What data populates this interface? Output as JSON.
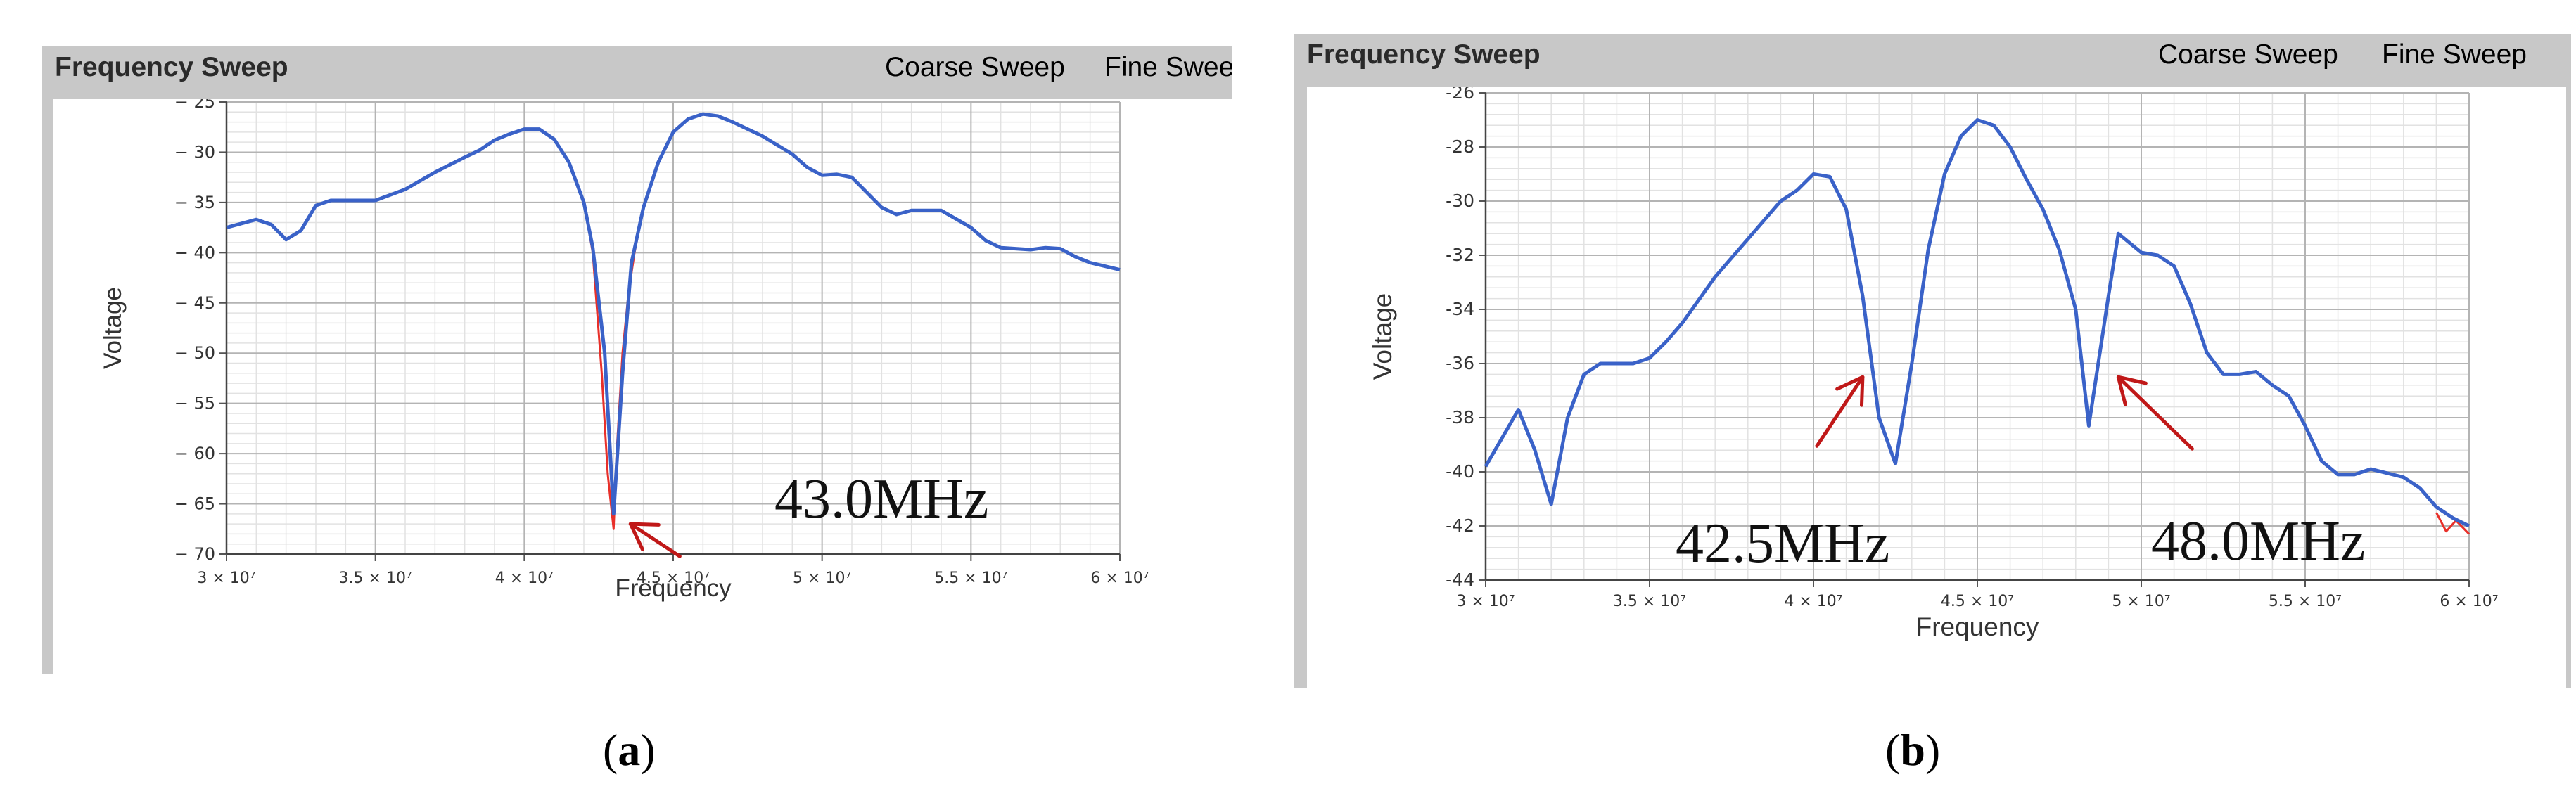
{
  "panels": [
    {
      "caption_open": "(",
      "caption_letter": "a",
      "caption_close": ")",
      "title": "Frequency Sweep",
      "legend": {
        "coarse": "Coarse Sweep",
        "fine": "Fine Swee"
      }
    },
    {
      "caption_open": "(",
      "caption_letter": "b",
      "caption_close": ")",
      "title": "Frequency Sweep",
      "legend": {
        "coarse": "Coarse Sweep",
        "fine": "Fine Sweep"
      }
    }
  ],
  "colors": {
    "coarse": "#e8302a",
    "fine": "#3a62c8",
    "arrow": "#c01818",
    "panel_bg": "#c8c8c8"
  },
  "chart_data": [
    {
      "type": "line",
      "title": "Frequency Sweep",
      "xlabel": "Frequency",
      "ylabel": "Voltage",
      "xlim": [
        30000000,
        60000000
      ],
      "ylim": [
        -70,
        -25
      ],
      "xticks": [
        30000000,
        35000000,
        40000000,
        45000000,
        50000000,
        55000000,
        60000000
      ],
      "xtick_labels": [
        "3 × 10⁷",
        "3.5 × 10⁷",
        "4 × 10⁷",
        "4.5 × 10⁷",
        "5 × 10⁷",
        "5.5 × 10⁷",
        "6 × 10⁷"
      ],
      "yticks": [
        -70,
        -65,
        -60,
        -55,
        -50,
        -45,
        -40,
        -35,
        -30,
        -25
      ],
      "ytick_labels": [
        "− 70",
        "− 65",
        "− 60",
        "− 55",
        "− 50",
        "− 45",
        "− 40",
        "− 35",
        "− 30",
        "− 25"
      ],
      "grid": true,
      "legend_position": "top-right",
      "series": [
        {
          "name": "Fine Swee",
          "color_key": "fine",
          "x": [
            30000000,
            31000000,
            31500000,
            32000000,
            32500000,
            33000000,
            33500000,
            34000000,
            35000000,
            36000000,
            37000000,
            38000000,
            38500000,
            39000000,
            39500000,
            40000000,
            40500000,
            41000000,
            41500000,
            42000000,
            42300000,
            42700000,
            43000000,
            43300000,
            43600000,
            44000000,
            44500000,
            45000000,
            45500000,
            46000000,
            46500000,
            47000000,
            48000000,
            49000000,
            49500000,
            50000000,
            50500000,
            51000000,
            52000000,
            52500000,
            53000000,
            54000000,
            55000000,
            55500000,
            56000000,
            56500000,
            57000000,
            57500000,
            58000000,
            58500000,
            59000000,
            60000000
          ],
          "y": [
            -37.5,
            -36.7,
            -37.2,
            -38.7,
            -37.8,
            -35.3,
            -34.8,
            -34.8,
            -34.8,
            -33.7,
            -32.0,
            -30.5,
            -29.8,
            -28.8,
            -28.2,
            -27.7,
            -27.7,
            -28.7,
            -31.0,
            -35.0,
            -39.5,
            -50.0,
            -66.0,
            -52.0,
            -41.0,
            -35.5,
            -31.0,
            -28.0,
            -26.7,
            -26.2,
            -26.4,
            -27.0,
            -28.4,
            -30.2,
            -31.5,
            -32.3,
            -32.2,
            -32.5,
            -35.5,
            -36.2,
            -35.8,
            -35.8,
            -37.5,
            -38.8,
            -39.5,
            -39.6,
            -39.7,
            -39.5,
            -39.6,
            -40.4,
            -41.0,
            -41.7
          ]
        },
        {
          "name": "Coarse Sweep",
          "color_key": "coarse",
          "x": [
            41500000,
            42000000,
            42300000,
            42600000,
            42800000,
            43000000,
            43100000,
            43300000,
            43500000,
            43700000,
            44000000
          ],
          "y": [
            -31.0,
            -35.0,
            -40.0,
            -52.0,
            -62.0,
            -67.5,
            -60.0,
            -50.0,
            -44.0,
            -40.0,
            -35.5
          ]
        }
      ],
      "annotations": [
        {
          "text": "43.0MHz",
          "x": 43000000
        }
      ]
    },
    {
      "type": "line",
      "title": "Frequency Sweep",
      "xlabel": "Frequency",
      "ylabel": "Voltage",
      "xlim": [
        30000000,
        60000000
      ],
      "ylim": [
        -44,
        -26
      ],
      "xticks": [
        30000000,
        35000000,
        40000000,
        45000000,
        50000000,
        55000000,
        60000000
      ],
      "xtick_labels": [
        "3 × 10⁷",
        "3.5 × 10⁷",
        "4 × 10⁷",
        "4.5 × 10⁷",
        "5 × 10⁷",
        "5.5 × 10⁷",
        "6 × 10⁷"
      ],
      "yticks": [
        -44,
        -42,
        -40,
        -38,
        -36,
        -34,
        -32,
        -30,
        -28,
        -26
      ],
      "ytick_labels": [
        "-44",
        "-42",
        "-40",
        "-38",
        "-36",
        "-34",
        "-32",
        "-30",
        "-28",
        "-26"
      ],
      "grid": true,
      "legend_position": "top-right",
      "series": [
        {
          "name": "Fine Sweep",
          "color_key": "fine",
          "x": [
            30000000,
            31000000,
            31500000,
            32000000,
            32500000,
            33000000,
            33500000,
            34000000,
            34500000,
            35000000,
            35500000,
            36000000,
            37000000,
            38000000,
            39000000,
            39500000,
            40000000,
            40500000,
            41000000,
            41500000,
            42000000,
            42500000,
            43000000,
            43500000,
            44000000,
            44500000,
            45000000,
            45500000,
            46000000,
            46500000,
            47000000,
            47500000,
            48000000,
            48400000,
            49000000,
            49300000,
            49700000,
            50000000,
            50500000,
            51000000,
            51500000,
            52000000,
            52500000,
            53000000,
            53500000,
            54000000,
            54500000,
            55000000,
            55500000,
            56000000,
            56500000,
            57000000,
            58000000,
            58500000,
            59000000,
            59500000,
            60000000
          ],
          "y": [
            -39.8,
            -37.7,
            -39.2,
            -41.2,
            -38.0,
            -36.4,
            -36.0,
            -36.0,
            -36.0,
            -35.8,
            -35.2,
            -34.5,
            -32.8,
            -31.4,
            -30.0,
            -29.6,
            -29.0,
            -29.1,
            -30.3,
            -33.5,
            -38.0,
            -39.7,
            -36.0,
            -31.8,
            -29.0,
            -27.6,
            -27.0,
            -27.2,
            -28.0,
            -29.2,
            -30.3,
            -31.8,
            -34.0,
            -38.3,
            -33.5,
            -31.2,
            -31.6,
            -31.9,
            -32.0,
            -32.4,
            -33.8,
            -35.6,
            -36.4,
            -36.4,
            -36.3,
            -36.8,
            -37.2,
            -38.3,
            -39.6,
            -40.1,
            -40.1,
            -39.9,
            -40.2,
            -40.6,
            -41.3,
            -41.7,
            -42.0
          ]
        },
        {
          "name": "Coarse Sweep",
          "color_key": "coarse",
          "x": [
            59000000,
            59300000,
            59600000,
            60000000
          ],
          "y": [
            -41.5,
            -42.2,
            -41.8,
            -42.3
          ]
        }
      ],
      "annotations": [
        {
          "text": "42.5MHz",
          "x": 42500000
        },
        {
          "text": "48.0MHz",
          "x": 48000000
        }
      ]
    }
  ]
}
